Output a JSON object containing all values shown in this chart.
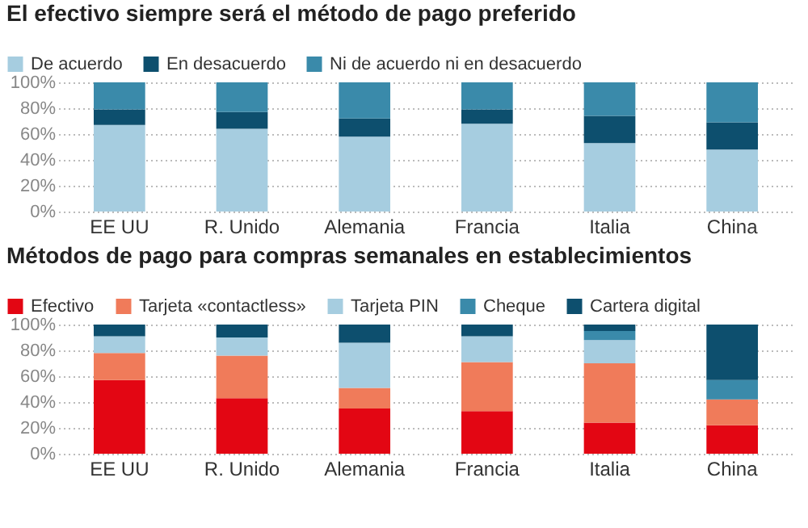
{
  "chart_data": [
    {
      "type": "bar",
      "stacked": true,
      "title": "El efectivo siempre será el método de pago preferido",
      "categories": [
        "EE UU",
        "R. Unido",
        "Alemania",
        "Francia",
        "Italia",
        "China"
      ],
      "ylim": [
        0,
        100
      ],
      "yticks": [
        {
          "value": 0,
          "label": "0%"
        },
        {
          "value": 20,
          "label": "20%"
        },
        {
          "value": 40,
          "label": "40%"
        },
        {
          "value": 60,
          "label": "60%"
        },
        {
          "value": 80,
          "label": "80%"
        },
        {
          "value": 100,
          "label": "100%"
        }
      ],
      "grid": "y",
      "legend": "top left",
      "series": [
        {
          "name": "De acuerdo",
          "color": "#a6cde0",
          "values": [
            67,
            64,
            58,
            68,
            53,
            48
          ]
        },
        {
          "name": "En desacuerdo",
          "color": "#0d4f6e",
          "values": [
            12,
            13,
            14,
            11,
            21,
            21
          ]
        },
        {
          "name": "Ni de acuerdo ni en desacuerdo",
          "color": "#3a8aaa",
          "values": [
            21,
            23,
            28,
            21,
            26,
            31
          ]
        }
      ]
    },
    {
      "type": "bar",
      "stacked": true,
      "title": "Métodos de pago para compras semanales en establecimientos",
      "categories": [
        "EE UU",
        "R. Unido",
        "Alemania",
        "Francia",
        "Italia",
        "China"
      ],
      "ylim": [
        0,
        100
      ],
      "yticks": [
        {
          "value": 0,
          "label": "0%"
        },
        {
          "value": 20,
          "label": "20%"
        },
        {
          "value": 40,
          "label": "40%"
        },
        {
          "value": 60,
          "label": "60%"
        },
        {
          "value": 80,
          "label": "80%"
        },
        {
          "value": 100,
          "label": "100%"
        }
      ],
      "grid": "y",
      "legend": "top left",
      "series": [
        {
          "name": "Efectivo",
          "color": "#e30613",
          "values": [
            57,
            43,
            35,
            33,
            24,
            22
          ]
        },
        {
          "name": "Tarjeta «contactless»",
          "color": "#f07b5a",
          "values": [
            21,
            33,
            16,
            38,
            46,
            20
          ]
        },
        {
          "name": "Tarjeta PIN",
          "color": "#a6cde0",
          "values": [
            13,
            14,
            35,
            20,
            18,
            0
          ]
        },
        {
          "name": "Cheque",
          "color": "#3a8aaa",
          "values": [
            0,
            0,
            0,
            0,
            7,
            15
          ]
        },
        {
          "name": "Cartera digital",
          "color": "#0d4f6e",
          "values": [
            9,
            10,
            14,
            9,
            5,
            43
          ]
        }
      ]
    }
  ]
}
